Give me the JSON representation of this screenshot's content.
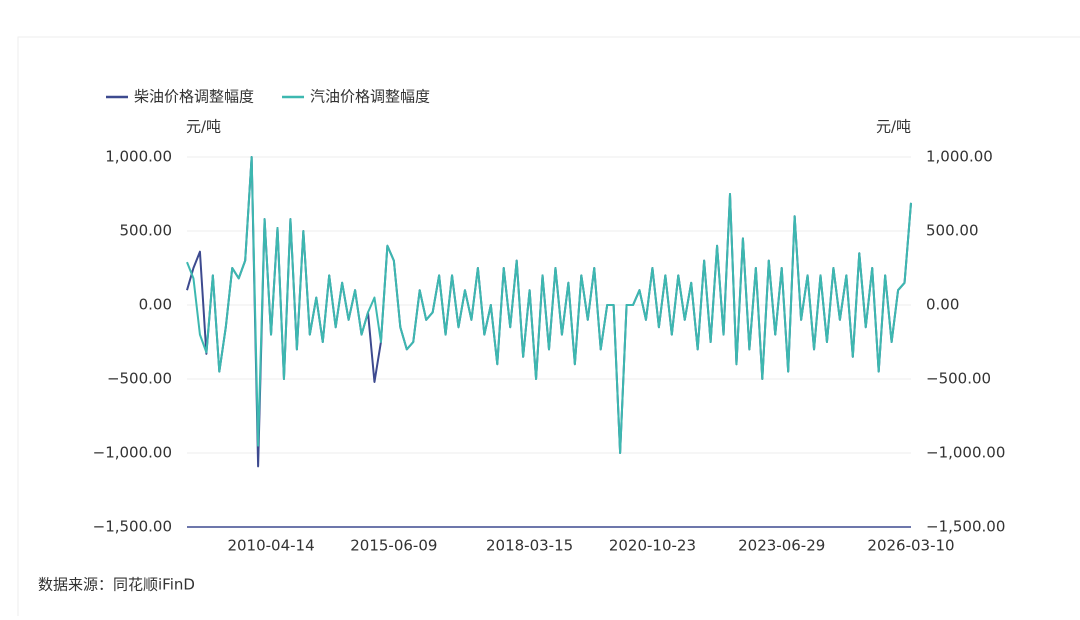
{
  "chart_data": {
    "type": "line",
    "legend_position": "top-left",
    "y_unit": "元/吨",
    "y2_unit": "元/吨",
    "source": "数据来源：同花顺iFinD",
    "categories": [
      null,
      null,
      null,
      null,
      null,
      null,
      null,
      null,
      null,
      null,
      null,
      null,
      null,
      "2010-04-14",
      null,
      null,
      null,
      null,
      null,
      null,
      null,
      null,
      null,
      null,
      null,
      null,
      null,
      null,
      null,
      null,
      null,
      null,
      "2015-06-09",
      null,
      null,
      null,
      null,
      null,
      null,
      null,
      null,
      null,
      null,
      null,
      null,
      null,
      null,
      null,
      null,
      null,
      null,
      null,
      null,
      "2018-03-15",
      null,
      null,
      null,
      null,
      null,
      null,
      null,
      null,
      null,
      null,
      null,
      null,
      null,
      null,
      null,
      null,
      null,
      null,
      "2020-10-23",
      null,
      null,
      null,
      null,
      null,
      null,
      null,
      null,
      null,
      null,
      null,
      null,
      null,
      null,
      null,
      null,
      null,
      null,
      null,
      "2023-06-29",
      null,
      null,
      null,
      null,
      null,
      null,
      null,
      null,
      null,
      null,
      null,
      null,
      null,
      null,
      null,
      null,
      null,
      null,
      null,
      "2026-03-10"
    ],
    "series": [
      {
        "name": "柴油价格调整幅度",
        "color": "#3d4a8f",
        "values": [
          100,
          250,
          360,
          -330,
          200,
          -450,
          -150,
          250,
          180,
          300,
          1000,
          -1090,
          580,
          -200,
          520,
          -500,
          580,
          -300,
          500,
          -200,
          50,
          -250,
          200,
          -150,
          150,
          -100,
          100,
          -200,
          -50,
          -520,
          -250,
          400,
          300,
          -150,
          -300,
          -250,
          100,
          -100,
          -50,
          200,
          -200,
          200,
          -150,
          100,
          -100,
          250,
          -200,
          0,
          -400,
          250,
          -150,
          300,
          -350,
          100,
          -500,
          200,
          -300,
          250,
          -200,
          150,
          -400,
          200,
          -100,
          250,
          -300,
          0,
          0,
          -1000,
          0,
          0,
          100,
          -100,
          250,
          -150,
          200,
          -200,
          200,
          -100,
          150,
          -300,
          300,
          -250,
          400,
          -200,
          750,
          -400,
          450,
          -300,
          250,
          -500,
          300,
          -200,
          250,
          -450,
          600,
          -100,
          200,
          -300,
          200,
          -250,
          250,
          -100,
          200,
          -350,
          350,
          -150,
          250,
          -450,
          200,
          -250,
          100,
          150,
          690
        ]
      },
      {
        "name": "汽油价格调整幅度",
        "color": "#3db8b0",
        "values": [
          290,
          180,
          -200,
          -320,
          200,
          -450,
          -150,
          250,
          180,
          300,
          1000,
          -950,
          580,
          -200,
          520,
          -500,
          580,
          -300,
          500,
          -200,
          50,
          -250,
          200,
          -150,
          150,
          -100,
          100,
          -200,
          -50,
          50,
          -250,
          400,
          300,
          -150,
          -300,
          -250,
          100,
          -100,
          -50,
          200,
          -200,
          200,
          -150,
          100,
          -100,
          250,
          -200,
          0,
          -400,
          250,
          -150,
          300,
          -350,
          100,
          -500,
          200,
          -300,
          250,
          -200,
          150,
          -400,
          200,
          -100,
          250,
          -300,
          0,
          0,
          -1000,
          0,
          0,
          100,
          -100,
          250,
          -150,
          200,
          -200,
          200,
          -100,
          150,
          -300,
          300,
          -250,
          400,
          -200,
          750,
          -400,
          450,
          -300,
          250,
          -500,
          300,
          -200,
          250,
          -450,
          600,
          -100,
          200,
          -300,
          200,
          -250,
          250,
          -100,
          200,
          -350,
          350,
          -150,
          250,
          -450,
          200,
          -250,
          100,
          150,
          690
        ]
      }
    ],
    "ylim": [
      -1500,
      1000
    ],
    "yticks": [
      {
        "value": -1500,
        "label": "−1,500.00"
      },
      {
        "value": -1000,
        "label": "−1,000.00"
      },
      {
        "value": -500,
        "label": "−500.00"
      },
      {
        "value": 0,
        "label": "0.00"
      },
      {
        "value": 500,
        "label": "500.00"
      },
      {
        "value": 1000,
        "label": "1,000.00"
      }
    ],
    "y2lim": [
      -1500,
      1000
    ],
    "y2ticks": [
      {
        "value": -1500,
        "label": "−1,500.00"
      },
      {
        "value": -1000,
        "label": "−1,000.00"
      },
      {
        "value": -500,
        "label": "−500.00"
      },
      {
        "value": 0,
        "label": "0.00"
      },
      {
        "value": 500,
        "label": "500.00"
      },
      {
        "value": 1000,
        "label": "1,000.00"
      }
    ],
    "grid": true
  }
}
